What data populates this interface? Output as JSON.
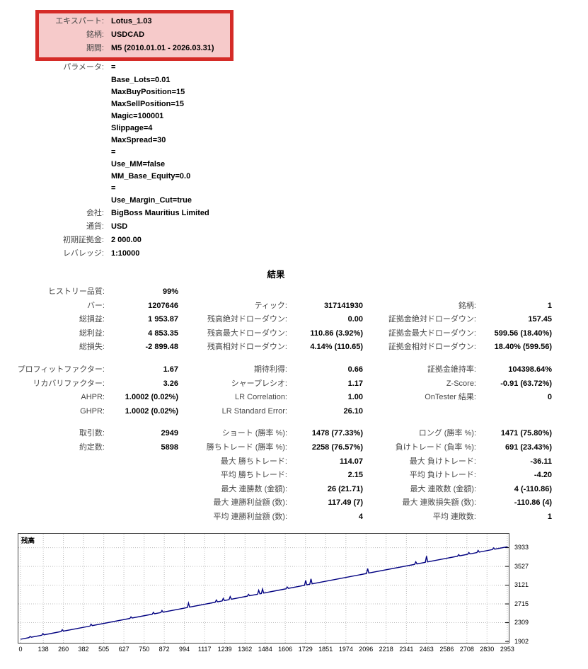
{
  "header": {
    "highlight_fields": [
      {
        "label": "エキスパート:",
        "value": "Lotus_1.03"
      },
      {
        "label": "銘柄:",
        "value": "USDCAD"
      },
      {
        "label": "期間:",
        "value": "M5 (2010.01.01 - 2026.03.31)"
      }
    ],
    "fields": [
      {
        "label": "パラメータ:",
        "value": "="
      },
      {
        "label": "",
        "value": "Base_Lots=0.01"
      },
      {
        "label": "",
        "value": "MaxBuyPosition=15"
      },
      {
        "label": "",
        "value": "MaxSellPosition=15"
      },
      {
        "label": "",
        "value": "Magic=100001"
      },
      {
        "label": "",
        "value": "Slippage=4"
      },
      {
        "label": "",
        "value": "MaxSpread=30"
      },
      {
        "label": "",
        "value": "="
      },
      {
        "label": "",
        "value": "Use_MM=false"
      },
      {
        "label": "",
        "value": "MM_Base_Equity=0.0"
      },
      {
        "label": "",
        "value": "="
      },
      {
        "label": "",
        "value": "Use_Margin_Cut=true"
      },
      {
        "label": "会社:",
        "value": "BigBoss Mauritius Limited"
      },
      {
        "label": "通貨:",
        "value": "USD"
      },
      {
        "label": "初期証拠金:",
        "value": "2 000.00"
      },
      {
        "label": "レバレッジ:",
        "value": "1:10000"
      }
    ]
  },
  "results": {
    "title": "結果",
    "blocks": [
      [
        [
          "ヒストリー品質:",
          "99%",
          "",
          "",
          "",
          ""
        ],
        [
          "バー:",
          "1207646",
          "ティック:",
          "317141930",
          "銘柄:",
          "1"
        ],
        [
          "総損益:",
          "1 953.87",
          "残高絶対ドローダウン:",
          "0.00",
          "証拠金絶対ドローダウン:",
          "157.45"
        ],
        [
          "総利益:",
          "4 853.35",
          "残高最大ドローダウン:",
          "110.86 (3.92%)",
          "証拠金最大ドローダウン:",
          "599.56 (18.40%)"
        ],
        [
          "総損失:",
          "-2 899.48",
          "残高相対ドローダウン:",
          "4.14% (110.65)",
          "証拠金相対ドローダウン:",
          "18.40% (599.56)"
        ]
      ],
      [
        [
          "プロフィットファクター:",
          "1.67",
          "期待利得:",
          "0.66",
          "証拠金維持率:",
          "104398.64%"
        ],
        [
          "リカバリファクター:",
          "3.26",
          "シャープレシオ:",
          "1.17",
          "Z-Score:",
          "-0.91 (63.72%)"
        ],
        [
          "AHPR:",
          "1.0002 (0.02%)",
          "LR Correlation:",
          "1.00",
          "OnTester 結果:",
          "0"
        ],
        [
          "GHPR:",
          "1.0002 (0.02%)",
          "LR Standard Error:",
          "26.10",
          "",
          ""
        ]
      ],
      [
        [
          "取引数:",
          "2949",
          "ショート (勝率 %):",
          "1478 (77.33%)",
          "ロング (勝率 %):",
          "1471 (75.80%)"
        ],
        [
          "約定数:",
          "5898",
          "勝ちトレード (勝率 %):",
          "2258 (76.57%)",
          "負けトレード (負率 %):",
          "691 (23.43%)"
        ],
        [
          "",
          "",
          "最大 勝ちトレード:",
          "114.07",
          "最大 負けトレード:",
          "-36.11"
        ],
        [
          "",
          "",
          "平均 勝ちトレード:",
          "2.15",
          "平均 負けトレード:",
          "-4.20"
        ],
        [
          "",
          "",
          "最大 連勝数 (金額):",
          "26 (21.71)",
          "最大 連敗数 (金額):",
          "4 (-110.86)"
        ],
        [
          "",
          "",
          "最大 連勝利益額 (数):",
          "117.49 (7)",
          "最大 連敗損失額 (数):",
          "-110.86 (4)"
        ],
        [
          "",
          "",
          "平均 連勝利益額 (数):",
          "4",
          "平均 連敗数:",
          "1"
        ]
      ]
    ]
  },
  "chart_data": {
    "type": "line",
    "title": "残高",
    "series_name": "残高",
    "x_ticks": [
      0,
      138,
      260,
      382,
      505,
      627,
      750,
      872,
      994,
      1117,
      1239,
      1362,
      1484,
      1606,
      1729,
      1851,
      1974,
      2096,
      2218,
      2341,
      2463,
      2586,
      2708,
      2830,
      2953
    ],
    "y_ticks": [
      1902,
      2309,
      2715,
      3121,
      3527,
      3933
    ],
    "x_domain": [
      -13,
      2962
    ],
    "y_domain": [
      1873,
      4233
    ],
    "trend": {
      "x_start": 0,
      "balance_start": 1950,
      "x_end": 2955,
      "balance_end": 3953
    },
    "spikes": [
      [
        60,
        20
      ],
      [
        138,
        30
      ],
      [
        255,
        34
      ],
      [
        430,
        34
      ],
      [
        672,
        30
      ],
      [
        808,
        34
      ],
      [
        860,
        40
      ],
      [
        1021,
        92
      ],
      [
        1190,
        44
      ],
      [
        1232,
        50
      ],
      [
        1274,
        60
      ],
      [
        1385,
        34
      ],
      [
        1447,
        80
      ],
      [
        1470,
        92
      ],
      [
        1620,
        34
      ],
      [
        1732,
        100
      ],
      [
        1764,
        112
      ],
      [
        2108,
        100
      ],
      [
        2400,
        50
      ],
      [
        2465,
        130
      ],
      [
        2660,
        30
      ],
      [
        2722,
        34
      ],
      [
        2778,
        40
      ],
      [
        2872,
        30
      ]
    ],
    "grid": true,
    "legend_position": "none"
  },
  "colors": {
    "highlight_border": "#d52b27",
    "highlight_bg": "#f6caca",
    "label_text": "#474747",
    "value_text": "#000000",
    "grid": "#bcbcbc",
    "line": "#000080",
    "plot_border": "#444444"
  }
}
